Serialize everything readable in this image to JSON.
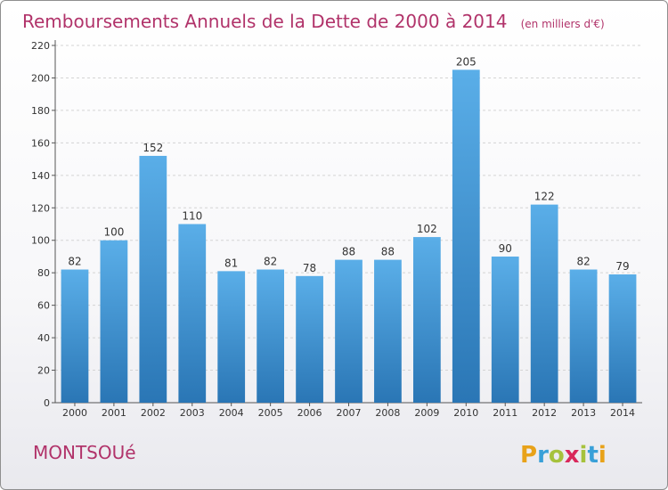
{
  "title": "Remboursements Annuels de la Dette de 2000 à 2014",
  "unit": "(en milliers d'€)",
  "town": "MONTSOUé",
  "brand": {
    "letters": [
      "P",
      "r",
      "o",
      "x",
      "i",
      "t",
      "i"
    ],
    "colors": [
      "#e8a219",
      "#39a0d8",
      "#a6c23c",
      "#d9285b",
      "#a6c23c",
      "#39a0d8",
      "#e8a219"
    ]
  },
  "colors": {
    "accent": "#b1336a",
    "bar_top": "#5aaee8",
    "bar_bottom": "#2a76b5"
  },
  "chart_data": {
    "type": "bar",
    "categories": [
      "2000",
      "2001",
      "2002",
      "2003",
      "2004",
      "2005",
      "2006",
      "2007",
      "2008",
      "2009",
      "2010",
      "2011",
      "2012",
      "2013",
      "2014"
    ],
    "values": [
      82,
      100,
      152,
      110,
      81,
      82,
      78,
      88,
      88,
      102,
      205,
      90,
      122,
      82,
      79
    ],
    "ylim": [
      0,
      220
    ],
    "yticks": [
      0,
      20,
      40,
      60,
      80,
      100,
      120,
      140,
      160,
      180,
      200,
      220
    ],
    "grid": true
  }
}
